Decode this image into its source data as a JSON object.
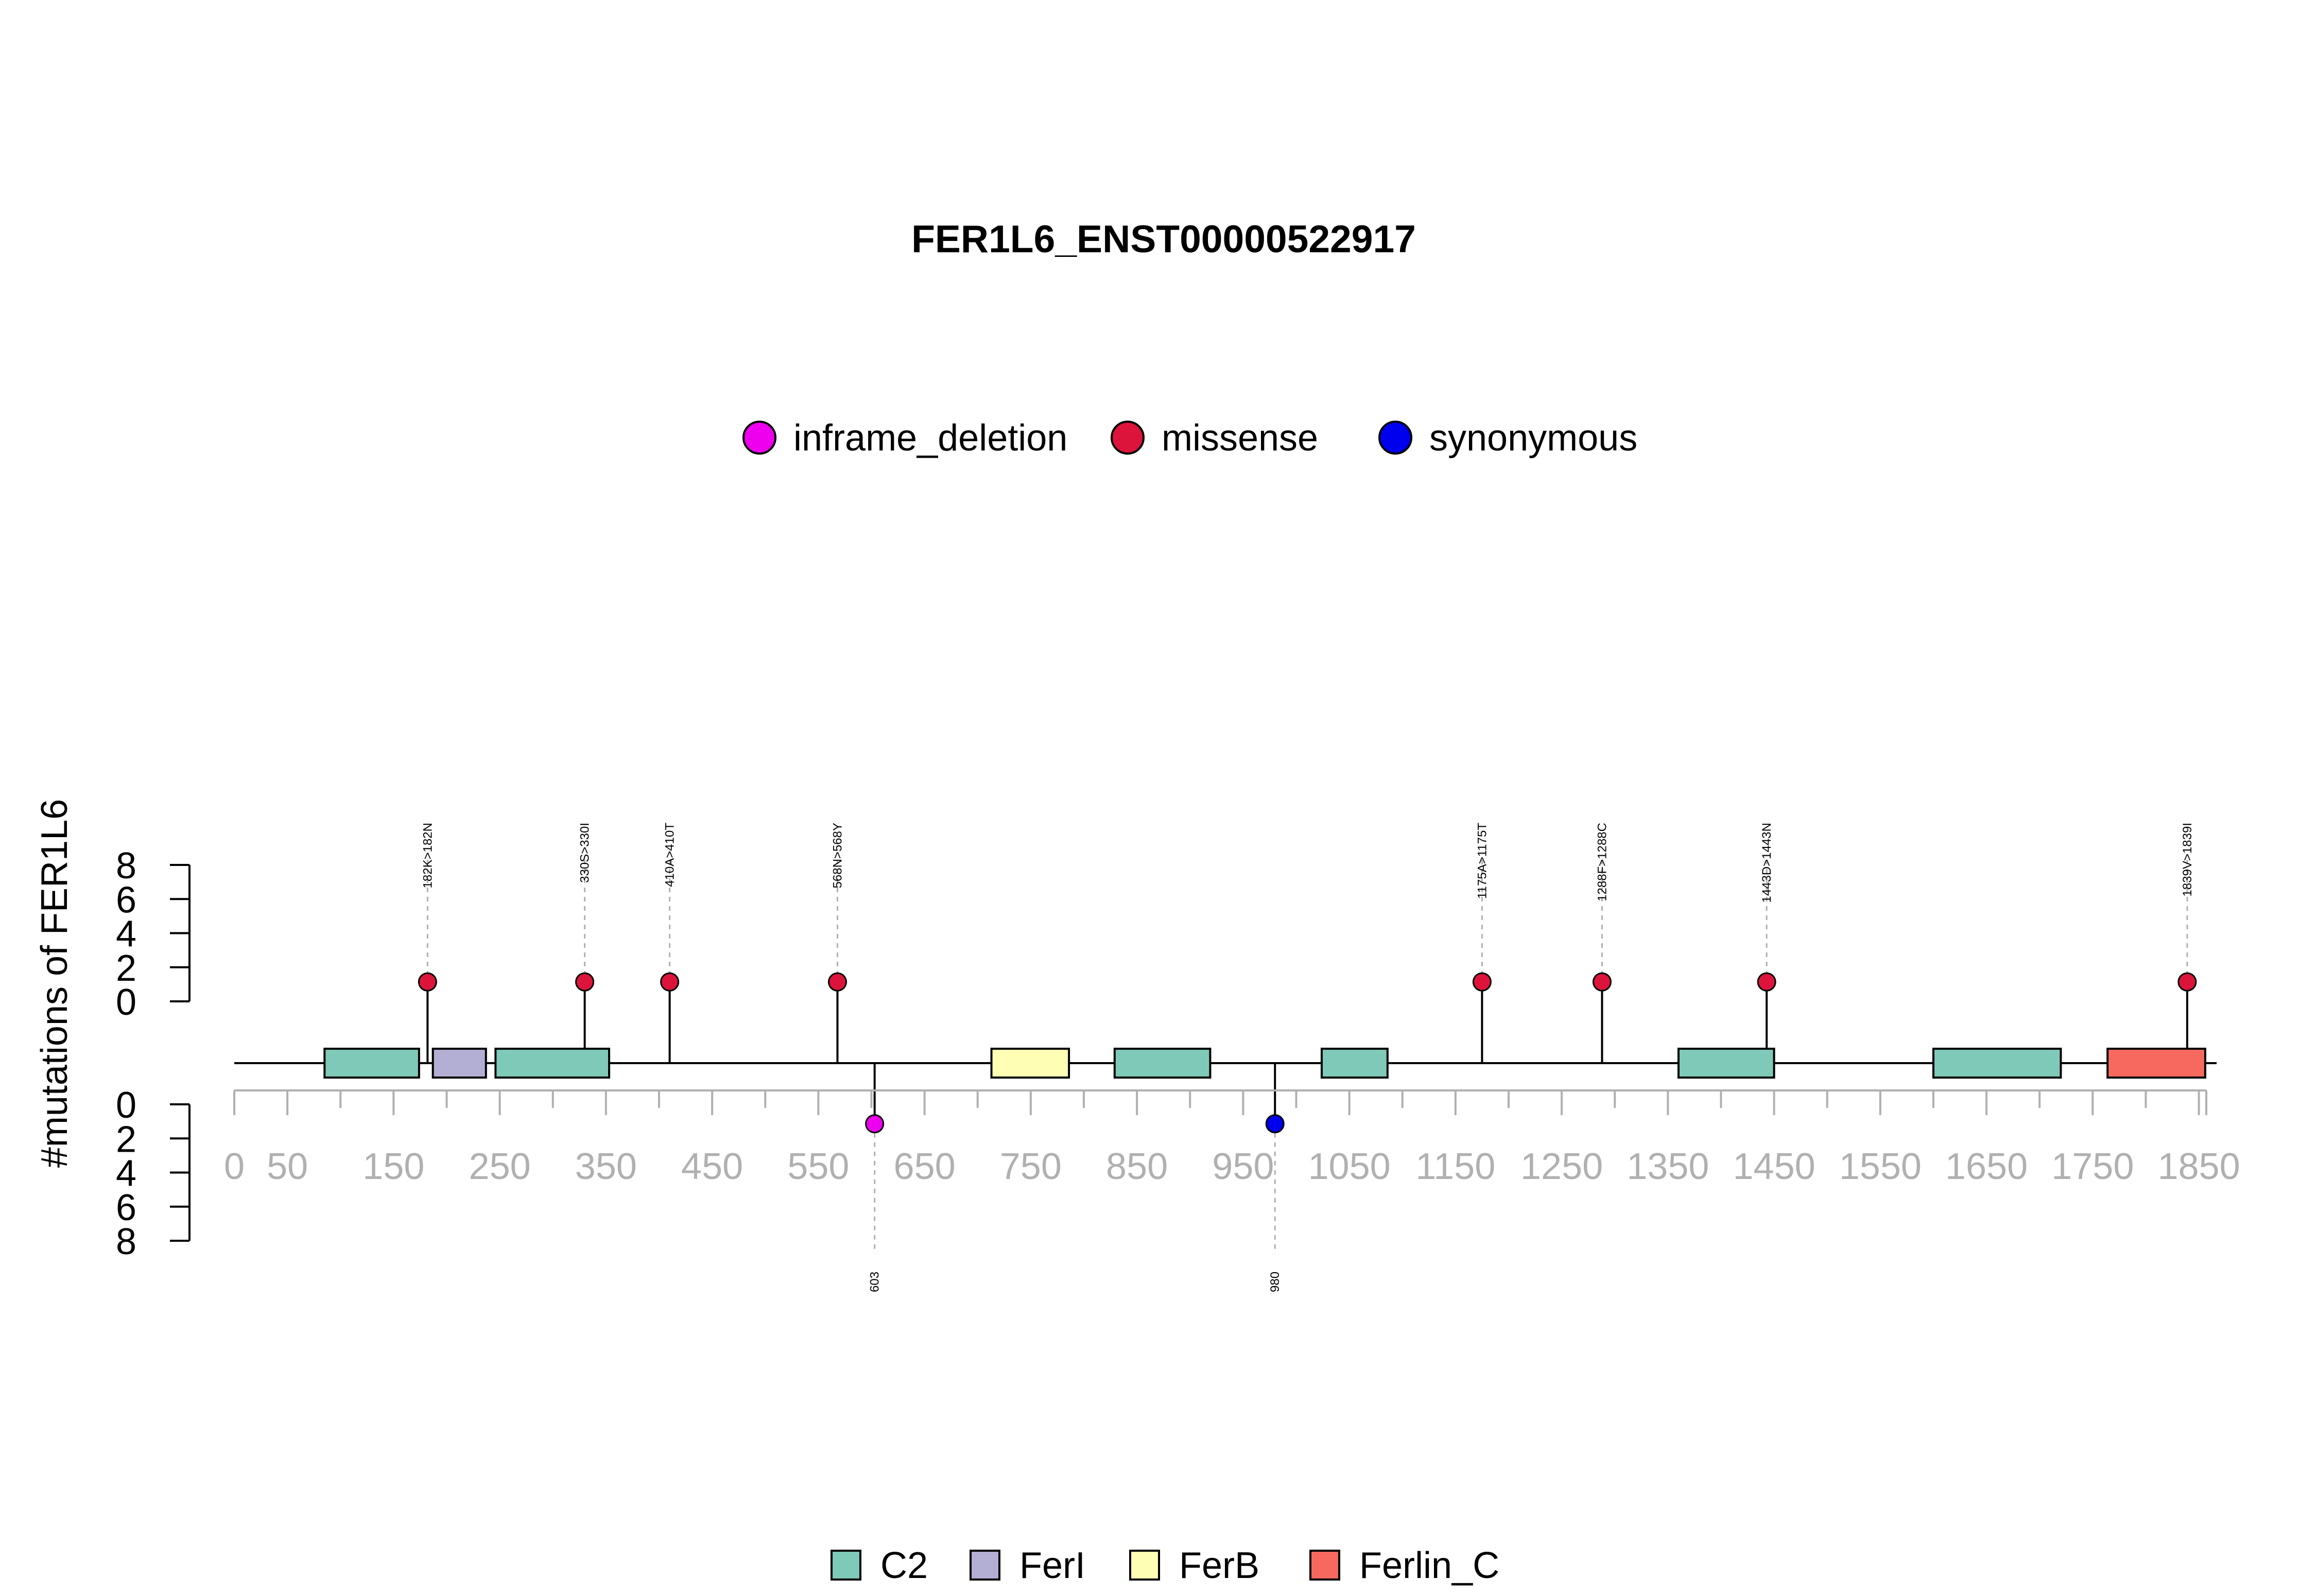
{
  "chart_data": {
    "type": "lollipop",
    "title": "FER1L6_ENST00000522917",
    "ylabel": "#mutations of FER1L6",
    "xlim": [
      0,
      1857
    ],
    "x_ticks": [
      0,
      50,
      150,
      250,
      350,
      450,
      550,
      650,
      750,
      850,
      950,
      1050,
      1150,
      1250,
      1350,
      1450,
      1550,
      1650,
      1750,
      1850
    ],
    "y_ticks": [
      0,
      2,
      4,
      6,
      8
    ],
    "ylim": [
      0,
      8
    ],
    "mutation_types": [
      {
        "name": "inframe_deletion",
        "color": "#EE00EE"
      },
      {
        "name": "missense",
        "color": "#DC143C"
      },
      {
        "name": "synonymous",
        "color": "#0000EE"
      }
    ],
    "mutations_top": [
      {
        "pos": 182,
        "label": "182K>182N",
        "count": 1,
        "type": "missense"
      },
      {
        "pos": 330,
        "label": "330S>330I",
        "count": 1,
        "type": "missense"
      },
      {
        "pos": 410,
        "label": "410A>410T",
        "count": 1,
        "type": "missense"
      },
      {
        "pos": 568,
        "label": "568N>568Y",
        "count": 1,
        "type": "missense"
      },
      {
        "pos": 1175,
        "label": "1175A>1175T",
        "count": 1,
        "type": "missense"
      },
      {
        "pos": 1288,
        "label": "1288F>1288C",
        "count": 1,
        "type": "missense"
      },
      {
        "pos": 1443,
        "label": "1443D>1443N",
        "count": 1,
        "type": "missense"
      },
      {
        "pos": 1839,
        "label": "1839V>1839I",
        "count": 1,
        "type": "missense"
      }
    ],
    "mutations_bottom": [
      {
        "pos": 603,
        "label": "603",
        "count": 1,
        "type": "inframe_deletion"
      },
      {
        "pos": 980,
        "label": "980",
        "count": 1,
        "type": "synonymous"
      }
    ],
    "domain_types": [
      {
        "name": "C2",
        "color": "#7FC9B9"
      },
      {
        "name": "FerI",
        "color": "#B3AED3"
      },
      {
        "name": "FerB",
        "color": "#FFFEB5"
      },
      {
        "name": "Ferlin_C",
        "color": "#F7695F"
      }
    ],
    "domains": [
      {
        "name": "C2",
        "start": 85,
        "end": 174
      },
      {
        "name": "FerI",
        "start": 187,
        "end": 237
      },
      {
        "name": "C2",
        "start": 246,
        "end": 353
      },
      {
        "name": "FerB",
        "start": 713,
        "end": 786
      },
      {
        "name": "C2",
        "start": 829,
        "end": 919
      },
      {
        "name": "C2",
        "start": 1024,
        "end": 1086
      },
      {
        "name": "C2",
        "start": 1360,
        "end": 1450
      },
      {
        "name": "C2",
        "start": 1600,
        "end": 1720
      },
      {
        "name": "Ferlin_C",
        "start": 1764,
        "end": 1856
      }
    ]
  }
}
